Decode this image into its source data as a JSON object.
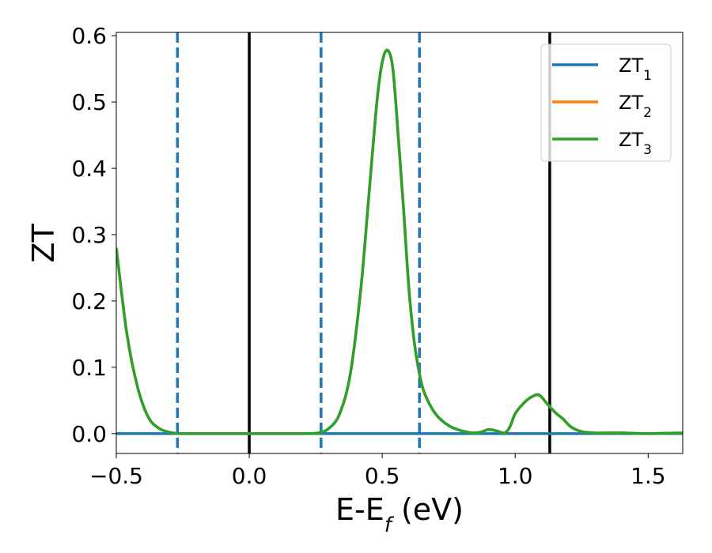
{
  "chart_data": {
    "type": "line",
    "xlabel": {
      "base": "E-E",
      "sub": "f",
      "rest": " (eV)"
    },
    "ylabel": "ZT",
    "xlim": [
      -0.5,
      1.63
    ],
    "ylim": [
      -0.03,
      0.605
    ],
    "xticks": [
      -0.5,
      0.0,
      0.5,
      1.0,
      1.5
    ],
    "xtick_labels": [
      "−0.5",
      "0.0",
      "0.5",
      "1.0",
      "1.5"
    ],
    "yticks": [
      0.0,
      0.1,
      0.2,
      0.3,
      0.4,
      0.5,
      0.6
    ],
    "ytick_labels": [
      "0.0",
      "0.1",
      "0.2",
      "0.3",
      "0.4",
      "0.5",
      "0.6"
    ],
    "grid": false,
    "legend": {
      "position": "top-right",
      "entries": [
        {
          "base": "ZT",
          "sub": "1",
          "color": "#1f77b4"
        },
        {
          "base": "ZT",
          "sub": "2",
          "color": "#ff7f0e"
        },
        {
          "base": "ZT",
          "sub": "3",
          "color": "#2ca02c"
        }
      ]
    },
    "vlines": [
      {
        "x": -0.27,
        "style": "dashed",
        "color": "#1f77b4"
      },
      {
        "x": 0.0,
        "style": "solid",
        "color": "#000000"
      },
      {
        "x": 0.27,
        "style": "dashed",
        "color": "#1f77b4"
      },
      {
        "x": 0.64,
        "style": "dashed",
        "color": "#1f77b4"
      },
      {
        "x": 1.13,
        "style": "solid",
        "color": "#000000"
      }
    ],
    "series": [
      {
        "name": "ZT1",
        "color": "#1f77b4",
        "x": [
          -0.5,
          1.63
        ],
        "y": [
          0.0,
          0.0
        ]
      },
      {
        "name": "ZT2",
        "color": "#ff7f0e",
        "x": [
          -0.5,
          -0.46,
          -0.42,
          -0.38,
          -0.34,
          -0.3,
          -0.26,
          -0.2,
          -0.1,
          0.0,
          0.1,
          0.2,
          0.26,
          0.3,
          0.34,
          0.38,
          0.42,
          0.45,
          0.48,
          0.5,
          0.52,
          0.54,
          0.56,
          0.58,
          0.6,
          0.62,
          0.64,
          0.66,
          0.7,
          0.75,
          0.8,
          0.84,
          0.87,
          0.9,
          0.93,
          0.96,
          0.98,
          1.0,
          1.03,
          1.06,
          1.09,
          1.12,
          1.15,
          1.18,
          1.21,
          1.25,
          1.3,
          1.4,
          1.5,
          1.63
        ],
        "y": [
          0.28,
          0.15,
          0.07,
          0.025,
          0.008,
          0.002,
          0.0,
          0.0,
          0.0,
          0.0,
          0.0,
          0.0,
          0.001,
          0.008,
          0.03,
          0.09,
          0.22,
          0.36,
          0.5,
          0.56,
          0.578,
          0.55,
          0.45,
          0.34,
          0.22,
          0.14,
          0.09,
          0.06,
          0.03,
          0.012,
          0.004,
          0.001,
          0.002,
          0.006,
          0.004,
          0.001,
          0.01,
          0.03,
          0.045,
          0.055,
          0.058,
          0.045,
          0.032,
          0.022,
          0.01,
          0.003,
          0.001,
          0.001,
          0.0,
          0.001
        ]
      },
      {
        "name": "ZT3",
        "color": "#2ca02c",
        "x": [
          -0.5,
          -0.46,
          -0.42,
          -0.38,
          -0.34,
          -0.3,
          -0.26,
          -0.2,
          -0.1,
          0.0,
          0.1,
          0.2,
          0.26,
          0.3,
          0.34,
          0.38,
          0.42,
          0.45,
          0.48,
          0.5,
          0.52,
          0.54,
          0.56,
          0.58,
          0.6,
          0.62,
          0.64,
          0.66,
          0.7,
          0.75,
          0.8,
          0.84,
          0.87,
          0.9,
          0.93,
          0.96,
          0.98,
          1.0,
          1.03,
          1.06,
          1.09,
          1.12,
          1.15,
          1.18,
          1.21,
          1.25,
          1.3,
          1.4,
          1.5,
          1.63
        ],
        "y": [
          0.28,
          0.15,
          0.07,
          0.025,
          0.008,
          0.002,
          0.0,
          0.0,
          0.0,
          0.0,
          0.0,
          0.0,
          0.001,
          0.008,
          0.03,
          0.09,
          0.22,
          0.36,
          0.5,
          0.56,
          0.578,
          0.55,
          0.45,
          0.34,
          0.22,
          0.14,
          0.09,
          0.06,
          0.03,
          0.012,
          0.004,
          0.001,
          0.002,
          0.006,
          0.004,
          0.001,
          0.01,
          0.03,
          0.045,
          0.055,
          0.058,
          0.045,
          0.032,
          0.022,
          0.01,
          0.003,
          0.001,
          0.001,
          0.0,
          0.001
        ]
      }
    ]
  }
}
